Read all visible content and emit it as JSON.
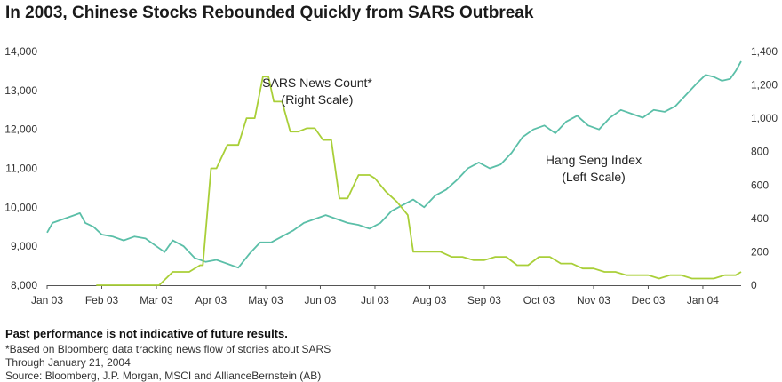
{
  "header": {
    "title": "In 2003, Chinese Stocks Rebounded Quickly from SARS Outbreak"
  },
  "footer": {
    "disclaimer": "Past performance is not indicative of future results.",
    "note": "*Based on Bloomberg data tracking news flow of stories about SARS",
    "through": "Through January 21, 2004",
    "source": "Source:  Bloomberg, J.P. Morgan, MSCI and AllianceBernstein (AB)"
  },
  "chart_data": {
    "type": "line",
    "title": "In 2003, Chinese Stocks Rebounded Quickly from SARS Outbreak",
    "x_ticks": [
      "Jan 03",
      "Feb 03",
      "Mar 03",
      "Apr 03",
      "May 03",
      "Jun 03",
      "Jul 03",
      "Aug 03",
      "Sep 03",
      "Oct 03",
      "Nov 03",
      "Dec 03",
      "Jan 04"
    ],
    "x_range": [
      0,
      12.7
    ],
    "left_axis": {
      "range": [
        8000,
        14000
      ],
      "ticks": [
        "8,000",
        "9,000",
        "10,000",
        "11,000",
        "12,000",
        "13,000",
        "14,000"
      ],
      "values": [
        8000,
        9000,
        10000,
        11000,
        12000,
        13000,
        14000
      ]
    },
    "right_axis": {
      "range": [
        0,
        1400
      ],
      "ticks": [
        "0",
        "200",
        "400",
        "600",
        "800",
        "1,000",
        "1,200",
        "1,400"
      ],
      "values": [
        0,
        200,
        400,
        600,
        800,
        1000,
        1200,
        1400
      ]
    },
    "grid": false,
    "series": [
      {
        "name": "Hang Seng Index",
        "axis": "left",
        "color": "#5bbfa8",
        "label_lines": [
          "Hang Seng Index",
          "(Left Scale)"
        ],
        "x": [
          0.0,
          0.1,
          0.3,
          0.5,
          0.6,
          0.7,
          0.85,
          1.0,
          1.2,
          1.4,
          1.6,
          1.8,
          2.0,
          2.15,
          2.3,
          2.5,
          2.7,
          2.9,
          3.1,
          3.3,
          3.5,
          3.7,
          3.9,
          4.1,
          4.3,
          4.5,
          4.7,
          4.9,
          5.1,
          5.3,
          5.5,
          5.7,
          5.9,
          6.1,
          6.3,
          6.5,
          6.7,
          6.9,
          7.1,
          7.3,
          7.5,
          7.7,
          7.9,
          8.1,
          8.3,
          8.5,
          8.7,
          8.9,
          9.1,
          9.3,
          9.5,
          9.7,
          9.9,
          10.1,
          10.3,
          10.5,
          10.7,
          10.9,
          11.1,
          11.3,
          11.5,
          11.7,
          11.9,
          12.05,
          12.2,
          12.35,
          12.5,
          12.6,
          12.7
        ],
        "values": [
          9350,
          9600,
          9700,
          9800,
          9850,
          9600,
          9500,
          9300,
          9250,
          9150,
          9250,
          9200,
          9000,
          8850,
          9150,
          9000,
          8700,
          8600,
          8650,
          8550,
          8450,
          8800,
          9100,
          9100,
          9250,
          9400,
          9600,
          9700,
          9800,
          9700,
          9600,
          9550,
          9450,
          9600,
          9900,
          10050,
          10200,
          10000,
          10300,
          10450,
          10700,
          11000,
          11150,
          11000,
          11100,
          11400,
          11800,
          12000,
          12100,
          11900,
          12200,
          12350,
          12100,
          12000,
          12300,
          12500,
          12400,
          12300,
          12500,
          12450,
          12600,
          12900,
          13200,
          13400,
          13350,
          13250,
          13300,
          13500,
          13750
        ]
      },
      {
        "name": "SARS News Count*",
        "axis": "right",
        "color": "#a9cf38",
        "label_lines": [
          "SARS News Count*",
          "(Right Scale)"
        ],
        "x": [
          0.9,
          1.0,
          2.05,
          2.3,
          2.6,
          2.8,
          2.85,
          3.0,
          3.1,
          3.3,
          3.5,
          3.65,
          3.8,
          3.95,
          4.05,
          4.15,
          4.3,
          4.45,
          4.6,
          4.75,
          4.9,
          5.05,
          5.2,
          5.35,
          5.5,
          5.7,
          5.9,
          6.0,
          6.1,
          6.2,
          6.4,
          6.6,
          6.7,
          6.85,
          7.0,
          7.2,
          7.4,
          7.6,
          7.8,
          8.0,
          8.2,
          8.4,
          8.6,
          8.8,
          9.0,
          9.2,
          9.4,
          9.6,
          9.8,
          10.0,
          10.2,
          10.4,
          10.6,
          10.8,
          11.0,
          11.2,
          11.4,
          11.6,
          11.8,
          12.0,
          12.2,
          12.4,
          12.6,
          12.7
        ],
        "values": [
          0,
          0,
          0,
          80,
          80,
          120,
          120,
          700,
          700,
          840,
          840,
          1000,
          1000,
          1250,
          1250,
          1100,
          1100,
          920,
          920,
          940,
          940,
          870,
          870,
          520,
          520,
          660,
          660,
          640,
          600,
          560,
          500,
          420,
          200,
          200,
          200,
          200,
          170,
          170,
          150,
          150,
          170,
          170,
          120,
          120,
          170,
          170,
          130,
          130,
          100,
          100,
          80,
          80,
          60,
          60,
          60,
          40,
          60,
          60,
          40,
          40,
          40,
          60,
          60,
          80
        ]
      }
    ]
  }
}
